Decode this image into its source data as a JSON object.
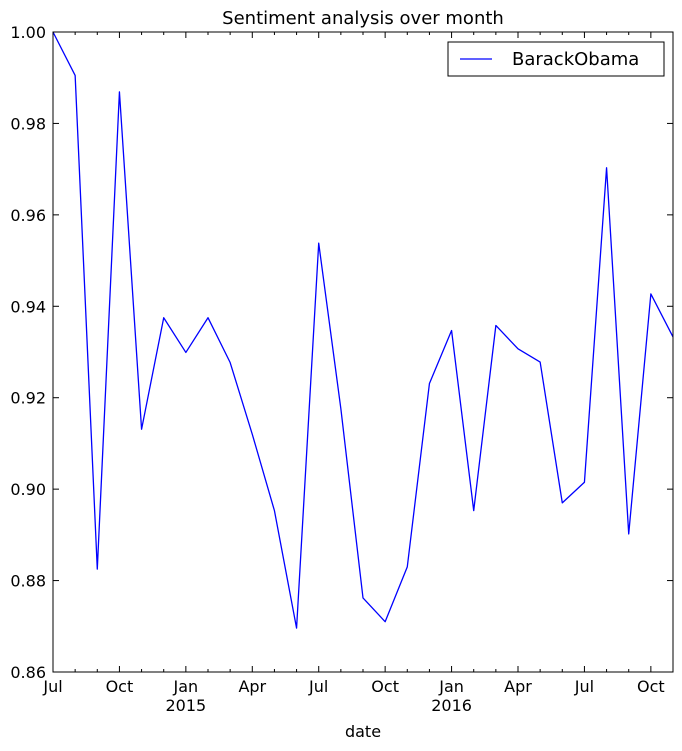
{
  "chart_data": {
    "type": "line",
    "title": "Sentiment analysis over month",
    "xlabel": "date",
    "ylabel": "",
    "ylim": [
      0.86,
      1.0
    ],
    "y_ticks": [
      "0.86",
      "0.88",
      "0.90",
      "0.92",
      "0.94",
      "0.96",
      "0.98",
      "1.00"
    ],
    "x_ticks": [
      "Jul",
      "Oct",
      "Jan",
      "Apr",
      "Jul",
      "Oct",
      "Jan",
      "Apr",
      "Jul",
      "Oct"
    ],
    "x_year_labels": [
      "2015",
      "2016"
    ],
    "grid": false,
    "legend": "top-right",
    "x": [
      "2014-07",
      "2014-08",
      "2014-09",
      "2014-10",
      "2014-11",
      "2014-12",
      "2015-01",
      "2015-02",
      "2015-03",
      "2015-04",
      "2015-05",
      "2015-06",
      "2015-07",
      "2015-08",
      "2015-09",
      "2015-10",
      "2015-11",
      "2015-12",
      "2016-01",
      "2016-02",
      "2016-03",
      "2016-04",
      "2016-05",
      "2016-06",
      "2016-07",
      "2016-08",
      "2016-09",
      "2016-10",
      "2016-11"
    ],
    "series": [
      {
        "name": "BarackObama",
        "color": "#0000ff",
        "values": [
          1.0,
          0.9905,
          0.8825,
          0.9869,
          0.9131,
          0.9375,
          0.9299,
          0.9375,
          0.9277,
          0.912,
          0.8953,
          0.8696,
          0.9538,
          0.9176,
          0.8762,
          0.871,
          0.883,
          0.9231,
          0.9347,
          0.8953,
          0.9358,
          0.9307,
          0.9278,
          0.897,
          0.9015,
          0.9703,
          0.8902,
          0.9427,
          0.9333
        ]
      }
    ]
  }
}
